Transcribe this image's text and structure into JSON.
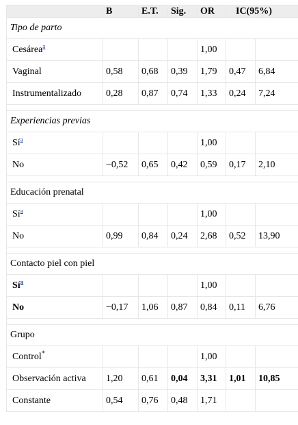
{
  "headers": [
    "",
    "B",
    "E.T.",
    "Sig.",
    "OR",
    "IC(95%)"
  ],
  "sections": [
    {
      "title": "Tipo de parto",
      "title_style": "italic",
      "rows": [
        {
          "label": "Cesárea",
          "sup": "a",
          "cells": [
            "",
            "",
            "",
            "1,00",
            "",
            ""
          ],
          "bold": []
        },
        {
          "label": "Vaginal",
          "sup": "",
          "cells": [
            "0,58",
            "0,68",
            "0,39",
            "1,79",
            "0,47",
            "6,84"
          ],
          "bold": []
        },
        {
          "label": "Instrumentalizado",
          "sup": "",
          "cells": [
            "0,28",
            "0,87",
            "0,74",
            "1,33",
            "0,24",
            "7,24"
          ],
          "bold": []
        }
      ]
    },
    {
      "title": "Experiencias previas",
      "title_style": "italic",
      "rows": [
        {
          "label": "Sí",
          "sup": "a",
          "cells": [
            "",
            "",
            "",
            "1,00",
            "",
            ""
          ],
          "bold": []
        },
        {
          "label": "No",
          "sup": "",
          "cells": [
            "−0,52",
            "0,65",
            "0,42",
            "0,59",
            "0,17",
            "2,10"
          ],
          "bold": []
        }
      ]
    },
    {
      "title": "Educación prenatal",
      "title_style": "normal",
      "rows": [
        {
          "label": "Sí",
          "sup": "a",
          "cells": [
            "",
            "",
            "",
            "1,00",
            "",
            ""
          ],
          "bold": []
        },
        {
          "label": "No",
          "sup": "",
          "cells": [
            "0,99",
            "0,84",
            "0,24",
            "2,68",
            "0,52",
            "13,90"
          ],
          "bold": []
        }
      ]
    },
    {
      "title": "Contacto piel con piel",
      "title_style": "normal",
      "rows": [
        {
          "label": "Sí",
          "sup": "a",
          "label_bold": true,
          "cells": [
            "",
            "",
            "",
            "1,00",
            "",
            ""
          ],
          "bold": []
        },
        {
          "label": "No",
          "sup": "",
          "label_bold": true,
          "cells": [
            "−0,17",
            "1,06",
            "0,87",
            "0,84",
            "0,11",
            "6,76"
          ],
          "bold": []
        }
      ]
    },
    {
      "title": "Grupo",
      "title_style": "normal",
      "rows": [
        {
          "label": "Control",
          "sup": "*",
          "cells": [
            "",
            "",
            "",
            "1,00",
            "",
            ""
          ],
          "bold": []
        },
        {
          "label": "Observación activa",
          "sup": "",
          "cells": [
            "1,20",
            "0,61",
            "0,04",
            "3,31",
            "1,01",
            "10,85"
          ],
          "bold": [
            2,
            3,
            4,
            5
          ]
        },
        {
          "label": "Constante",
          "sup": "",
          "cells": [
            "0,54",
            "0,76",
            "0,48",
            "1,71",
            "",
            ""
          ],
          "bold": []
        }
      ]
    }
  ]
}
